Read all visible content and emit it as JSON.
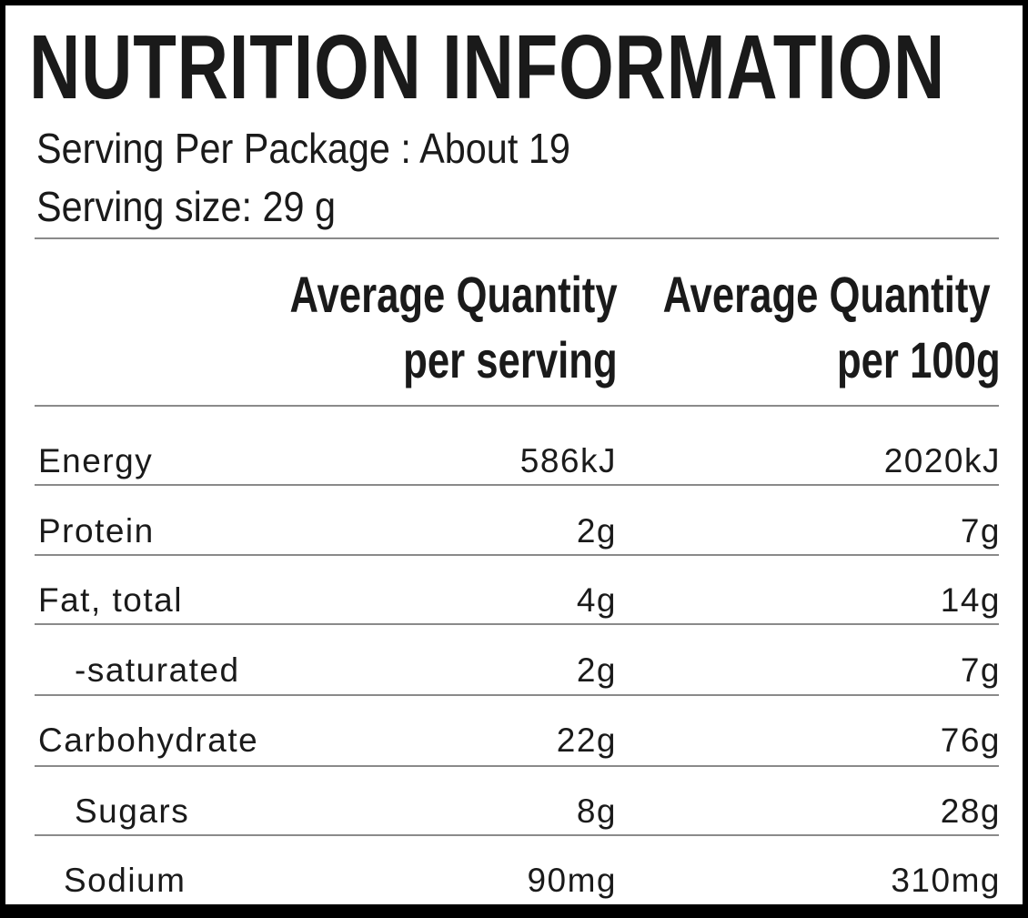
{
  "title": "NUTRITION INFORMATION",
  "servings_per_package": "Serving Per Package : About 19",
  "serving_size": "Serving size: 29 g",
  "columns": {
    "per_serving": [
      "Average Quantity",
      "per serving"
    ],
    "per_100g": [
      "Average Quantity",
      "per 100g"
    ]
  },
  "rows": [
    {
      "label": "Energy",
      "per_serving": "586kJ",
      "per_100g": "2020kJ"
    },
    {
      "label": "Protein",
      "per_serving": "2g",
      "per_100g": "7g"
    },
    {
      "label": "Fat, total",
      "per_serving": "4g",
      "per_100g": "14g"
    },
    {
      "label": "-saturated",
      "per_serving": "2g",
      "per_100g": "7g"
    },
    {
      "label": "Carbohydrate",
      "per_serving": "22g",
      "per_100g": "76g"
    },
    {
      "label": "Sugars",
      "per_serving": "8g",
      "per_100g": "28g"
    },
    {
      "label": "Sodium",
      "per_serving": "90mg",
      "per_100g": "310mg"
    }
  ]
}
